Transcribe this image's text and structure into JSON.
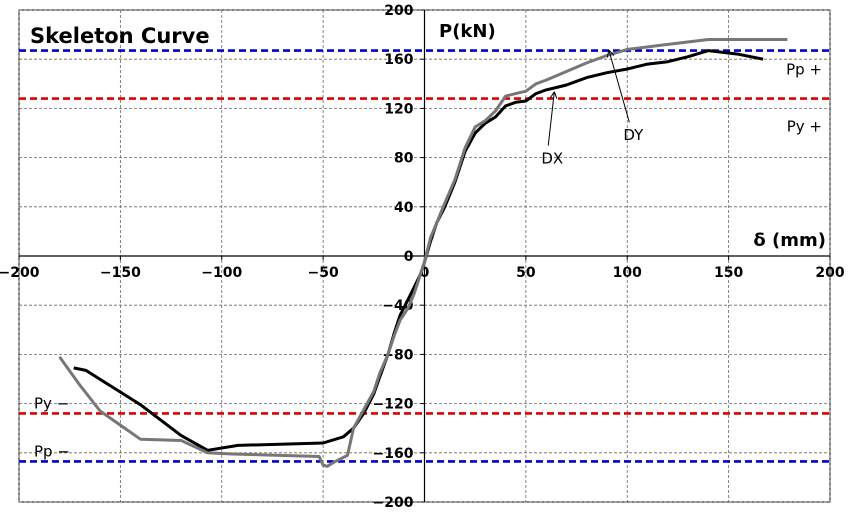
{
  "chart_data": {
    "type": "line",
    "title": "Skeleton Curve",
    "xlabel": "δ (mm)",
    "ylabel": "P(kN)",
    "xlim": [
      -200,
      200
    ],
    "ylim": [
      -200,
      200
    ],
    "xticks": [
      -200,
      -150,
      -100,
      -50,
      0,
      50,
      100,
      150,
      200
    ],
    "yticks": [
      -200,
      -160,
      -120,
      -80,
      -40,
      0,
      40,
      80,
      120,
      160,
      200
    ],
    "grid": true,
    "series": [
      {
        "name": "DX",
        "color": "#000000",
        "x": [
          -173,
          -167,
          -140,
          -120,
          -107,
          -92,
          -50,
          -40,
          -35,
          -30,
          -25,
          -22,
          -18,
          -15,
          -12,
          -8,
          -5,
          -2,
          0,
          3,
          6,
          10,
          15,
          20,
          25,
          30,
          35,
          40,
          45,
          50,
          55,
          60,
          65,
          70,
          75,
          80,
          90,
          100,
          110,
          120,
          130,
          140,
          155,
          167
        ],
        "y": [
          -91,
          -93,
          -121,
          -146,
          -158,
          -154,
          -152,
          -147,
          -140,
          -128,
          -112,
          -98,
          -80,
          -63,
          -48,
          -35,
          -25,
          -15,
          -5,
          12,
          27,
          40,
          60,
          85,
          100,
          108,
          113,
          122,
          125,
          126,
          132,
          135,
          137,
          139,
          142,
          145,
          149,
          152,
          156,
          158,
          162,
          167,
          164,
          160
        ]
      },
      {
        "name": "DY",
        "color": "#777777",
        "x": [
          -180,
          -170,
          -160,
          -140,
          -120,
          -107,
          -95,
          -52,
          -50,
          -48,
          -45,
          -38,
          -35,
          -30,
          -25,
          -22,
          -18,
          -15,
          -12,
          -8,
          -5,
          -2,
          0,
          3,
          6,
          10,
          15,
          20,
          25,
          30,
          35,
          40,
          45,
          50,
          55,
          60,
          70,
          80,
          90,
          100,
          120,
          140,
          160,
          179
        ],
        "y": [
          -82,
          -105,
          -126,
          -149,
          -150,
          -160,
          -161,
          -163,
          -170,
          -171,
          -168,
          -162,
          -140,
          -125,
          -110,
          -95,
          -80,
          -65,
          -52,
          -42,
          -30,
          -15,
          -5,
          15,
          27,
          43,
          62,
          88,
          105,
          110,
          118,
          130,
          132,
          134,
          140,
          143,
          150,
          157,
          163,
          168,
          172,
          176,
          176,
          176
        ]
      }
    ],
    "reference_lines": [
      {
        "label": "Pp +",
        "y": 167,
        "color": "#0000cc"
      },
      {
        "label": "Py +",
        "y": 128,
        "color": "#dd0000"
      },
      {
        "label": "Py −",
        "y": -128,
        "color": "#dd0000"
      },
      {
        "label": "Pp −",
        "y": -167,
        "color": "#0000cc"
      }
    ],
    "annotations": [
      {
        "text": "DX",
        "target": [
          64,
          133
        ],
        "label_at": [
          63,
          80
        ]
      },
      {
        "text": "DY",
        "target": [
          91,
          167
        ],
        "label_at": [
          103,
          99
        ]
      }
    ]
  }
}
